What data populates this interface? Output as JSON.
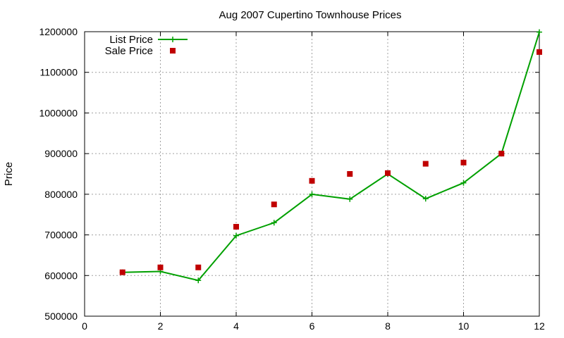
{
  "chart_data": {
    "type": "line",
    "title": "Aug 2007 Cupertino Townhouse Prices",
    "xlabel": "",
    "ylabel": "Price",
    "xlim": [
      0,
      12
    ],
    "ylim": [
      500000,
      1200000
    ],
    "xticks": [
      0,
      2,
      4,
      6,
      8,
      10,
      12
    ],
    "yticks": [
      500000,
      600000,
      700000,
      800000,
      900000,
      1000000,
      1100000,
      1200000
    ],
    "grid": true,
    "legend_position": "top-left",
    "series": [
      {
        "name": "List Price",
        "style": "line-with-plus-markers",
        "color": "#00a000",
        "x": [
          1,
          2,
          3,
          4,
          5,
          6,
          7,
          8,
          9,
          10,
          11,
          12
        ],
        "y": [
          608000,
          610000,
          588000,
          698000,
          730000,
          800000,
          788000,
          850000,
          789000,
          828000,
          900000,
          1199000
        ]
      },
      {
        "name": "Sale Price",
        "style": "square-markers",
        "color": "#c00000",
        "x": [
          1,
          2,
          3,
          4,
          5,
          6,
          7,
          8,
          9,
          10,
          11,
          12
        ],
        "y": [
          608000,
          620000,
          620000,
          720000,
          775000,
          833000,
          850000,
          852000,
          875000,
          878000,
          900000,
          1150000
        ]
      }
    ]
  }
}
